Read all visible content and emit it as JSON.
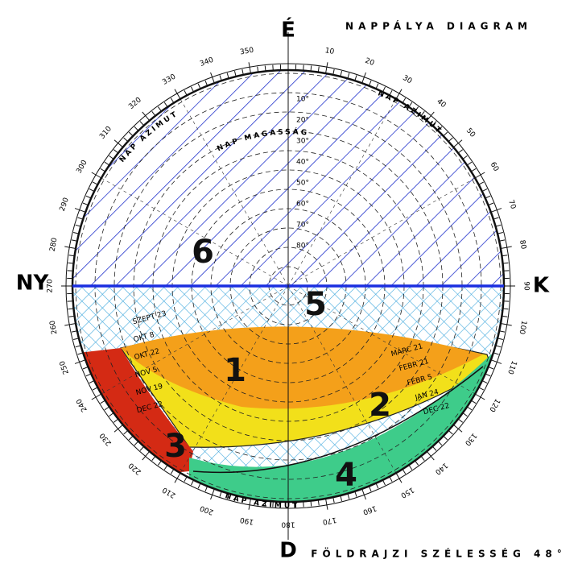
{
  "header": {
    "title": "NAPPÁLYA DIAGRAM",
    "footer": "FÖLDRAJZI SZÉLESSÉG 48°"
  },
  "directions": {
    "north": "É",
    "east": "K",
    "south": "D",
    "west": "NY"
  },
  "azimuth_labels": [
    10,
    20,
    30,
    40,
    50,
    60,
    70,
    80,
    90,
    100,
    110,
    120,
    130,
    140,
    150,
    160,
    170,
    180,
    190,
    200,
    210,
    220,
    230,
    240,
    250,
    260,
    270,
    280,
    290,
    300,
    310,
    320,
    330,
    340,
    350
  ],
  "scale_labels": {
    "azimuth_top_left": "NAP AZIMUT",
    "azimuth_top_right": "NAP AZIMUT",
    "altitude": "NAP MAGASSÁG",
    "azimuth_bottom": "NAP AZIMUT"
  },
  "altitude_labels": [
    "10°",
    "20°",
    "30°",
    "40°",
    "50°",
    "60°",
    "70°",
    "80°"
  ],
  "dates_left": [
    "SZEPT 23",
    "OKT 8",
    "OKT 22",
    "NOV 5",
    "NOV 19",
    "DEC 22"
  ],
  "dates_right": [
    "MÁRC 21",
    "FEBR 21",
    "FEBR 5",
    "JAN 24",
    "DEC 22"
  ],
  "zones": [
    "1",
    "2",
    "3",
    "4",
    "5",
    "6"
  ]
}
